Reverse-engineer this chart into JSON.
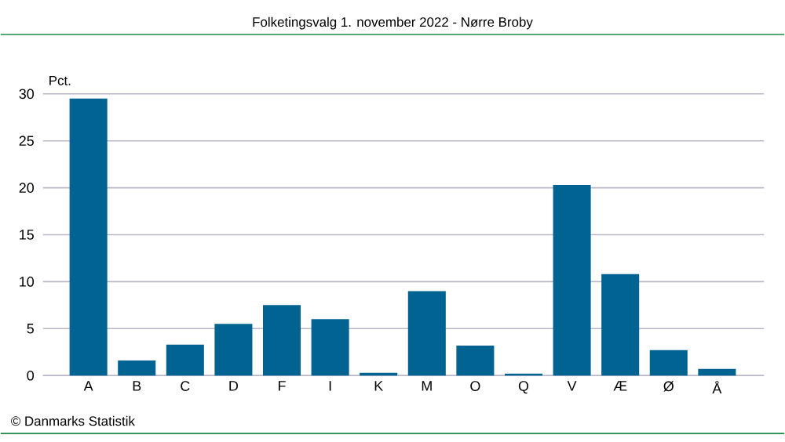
{
  "chart_data": {
    "type": "bar",
    "title": "Folketingsvalg 1. november 2022 - Nørre Broby",
    "ylabel": "Pct.",
    "categories": [
      "A",
      "B",
      "C",
      "D",
      "F",
      "I",
      "K",
      "M",
      "O",
      "Q",
      "V",
      "Æ",
      "Ø",
      "Å"
    ],
    "values": [
      29.5,
      1.6,
      3.3,
      5.5,
      7.5,
      6.0,
      0.3,
      9.0,
      3.2,
      0.2,
      20.3,
      10.8,
      2.7,
      0.7
    ],
    "color": "#006391",
    "ylim": [
      0,
      30
    ],
    "yticks": [
      0,
      5,
      10,
      15,
      20,
      25,
      30
    ],
    "grid": "y",
    "annotations": [
      "© Danmarks Statistik"
    ]
  }
}
